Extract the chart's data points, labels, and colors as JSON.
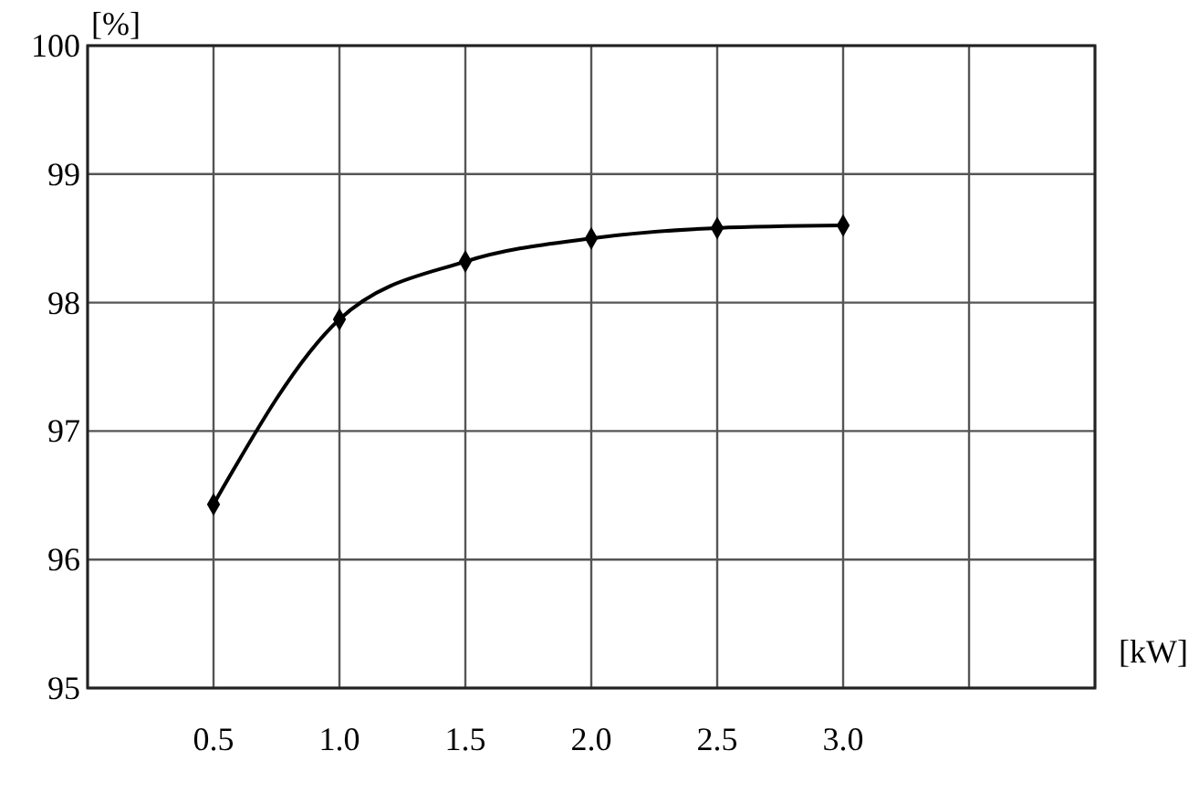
{
  "chart_data": {
    "type": "line",
    "xlabel": "[kW]",
    "ylabel": "[%]",
    "x": [
      0.5,
      1.0,
      1.5,
      2.0,
      2.5,
      3.0
    ],
    "series": [
      {
        "color": "#000000",
        "values": [
          96.43,
          97.87,
          98.32,
          98.5,
          98.58,
          98.6
        ]
      }
    ],
    "xlim": [
      0,
      4
    ],
    "xticks": [
      {
        "value": 0,
        "label": null
      },
      {
        "value": 0.5,
        "label": "0.5"
      },
      {
        "value": 1,
        "label": "1.0"
      },
      {
        "value": 1.5,
        "label": "1.5"
      },
      {
        "value": 2,
        "label": "2.0"
      },
      {
        "value": 2.5,
        "label": "2.5"
      },
      {
        "value": 3,
        "label": "3.0"
      },
      {
        "value": 3.5,
        "label": null
      },
      {
        "value": 4,
        "label": null
      }
    ],
    "ylim": [
      95,
      100
    ],
    "yticks": [
      95,
      96,
      97,
      98,
      99,
      100
    ],
    "grid": true,
    "marker": "diamond",
    "line_style": "solid"
  }
}
